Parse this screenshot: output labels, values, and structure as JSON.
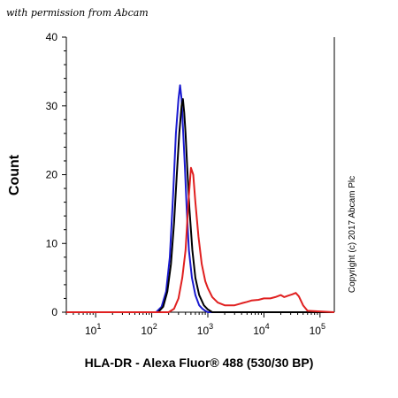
{
  "watermark": "with permission from Abcam",
  "copyright": "Copyright (c) 2017 Abcam Plc",
  "chart_data": {
    "type": "line",
    "title": "",
    "xlabel": "HLA-DR - Alexa Fluor® 488 (530/30 BP)",
    "ylabel": "Count",
    "x_scale": "log",
    "xlim": [
      3,
      180000
    ],
    "ylim": [
      0,
      40
    ],
    "x_ticks": [
      {
        "value": 10,
        "base": "10",
        "exp": "1"
      },
      {
        "value": 100,
        "base": "10",
        "exp": "2"
      },
      {
        "value": 1000,
        "base": "10",
        "exp": "3"
      },
      {
        "value": 10000,
        "base": "10",
        "exp": "4"
      },
      {
        "value": 100000,
        "base": "10",
        "exp": "5"
      }
    ],
    "y_ticks": [
      0,
      10,
      20,
      30,
      40
    ],
    "grid": false,
    "series": [
      {
        "color": "#1a1ad0",
        "x": [
          3,
          120,
          150,
          180,
          210,
          240,
          270,
          300,
          320,
          340,
          360,
          390,
          420,
          460,
          520,
          600,
          700,
          800,
          900,
          1000,
          180000
        ],
        "y": [
          0,
          0,
          0.8,
          3,
          8,
          17,
          26,
          31,
          33,
          31,
          27,
          21,
          15,
          9,
          5,
          2.5,
          1,
          0.5,
          0.2,
          0,
          0
        ]
      },
      {
        "color": "#000000",
        "x": [
          3,
          130,
          160,
          190,
          220,
          250,
          280,
          310,
          340,
          360,
          380,
          400,
          430,
          470,
          530,
          600,
          700,
          850,
          1000,
          1200,
          180000
        ],
        "y": [
          0,
          0,
          0.8,
          3,
          7,
          13,
          20,
          26,
          30,
          31,
          29,
          26,
          21,
          15,
          9,
          5,
          2.5,
          1,
          0.4,
          0,
          0
        ]
      },
      {
        "color": "#e02020",
        "x": [
          3,
          200,
          250,
          300,
          350,
          400,
          450,
          500,
          550,
          600,
          680,
          780,
          900,
          1000,
          1200,
          1500,
          2000,
          3000,
          4000,
          5000,
          6000,
          8000,
          10000,
          13000,
          16000,
          20000,
          23000,
          27000,
          32000,
          37000,
          42000,
          50000,
          60000,
          180000
        ],
        "y": [
          0,
          0,
          0.5,
          2,
          5,
          9,
          16,
          21,
          20,
          16,
          11,
          7,
          4.5,
          3.5,
          2.2,
          1.4,
          1,
          1,
          1.3,
          1.5,
          1.7,
          1.8,
          2,
          2,
          2.2,
          2.5,
          2.2,
          2.4,
          2.6,
          2.8,
          2.3,
          1,
          0.2,
          0
        ]
      }
    ]
  }
}
